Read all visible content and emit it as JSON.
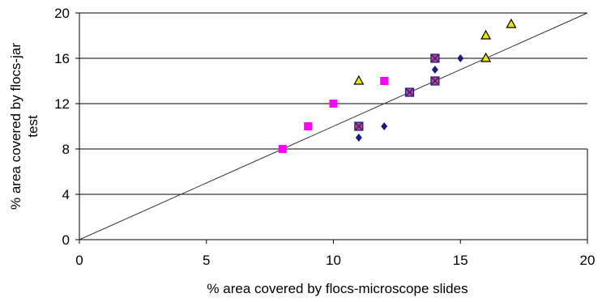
{
  "chart_data": {
    "type": "scatter",
    "title": "",
    "xlabel": "% area covered by flocs-microscope slides",
    "ylabel_lines": [
      "% area covered by flocs-jar",
      "test"
    ],
    "xlim": [
      0,
      20
    ],
    "ylim": [
      0,
      20
    ],
    "xticks": [
      0,
      5,
      10,
      15,
      20
    ],
    "yticks": [
      0,
      4,
      8,
      12,
      16,
      20
    ],
    "grid": "horizontal",
    "legend": "none",
    "reference_line": {
      "from": [
        0,
        0
      ],
      "to": [
        20,
        20
      ]
    },
    "series": [
      {
        "marker": "diamond",
        "color": "#1a1a80",
        "points": [
          [
            11,
            9
          ],
          [
            12,
            10
          ],
          [
            14,
            15
          ],
          [
            15,
            16
          ]
        ]
      },
      {
        "marker": "square",
        "color": "#ff00ff",
        "points": [
          [
            8,
            8
          ],
          [
            9,
            10
          ],
          [
            10,
            12
          ],
          [
            12,
            14
          ]
        ]
      },
      {
        "marker": "triangle",
        "color": "#e6e600",
        "stroke": "#000000",
        "points": [
          [
            11,
            14
          ],
          [
            16,
            18
          ],
          [
            16,
            16
          ],
          [
            17,
            19
          ]
        ]
      },
      {
        "marker": "square-x",
        "color": "#c04080",
        "stroke": "#1a1a80",
        "points": [
          [
            11,
            10
          ],
          [
            13,
            13
          ],
          [
            14,
            14
          ],
          [
            14,
            16
          ]
        ]
      }
    ]
  }
}
